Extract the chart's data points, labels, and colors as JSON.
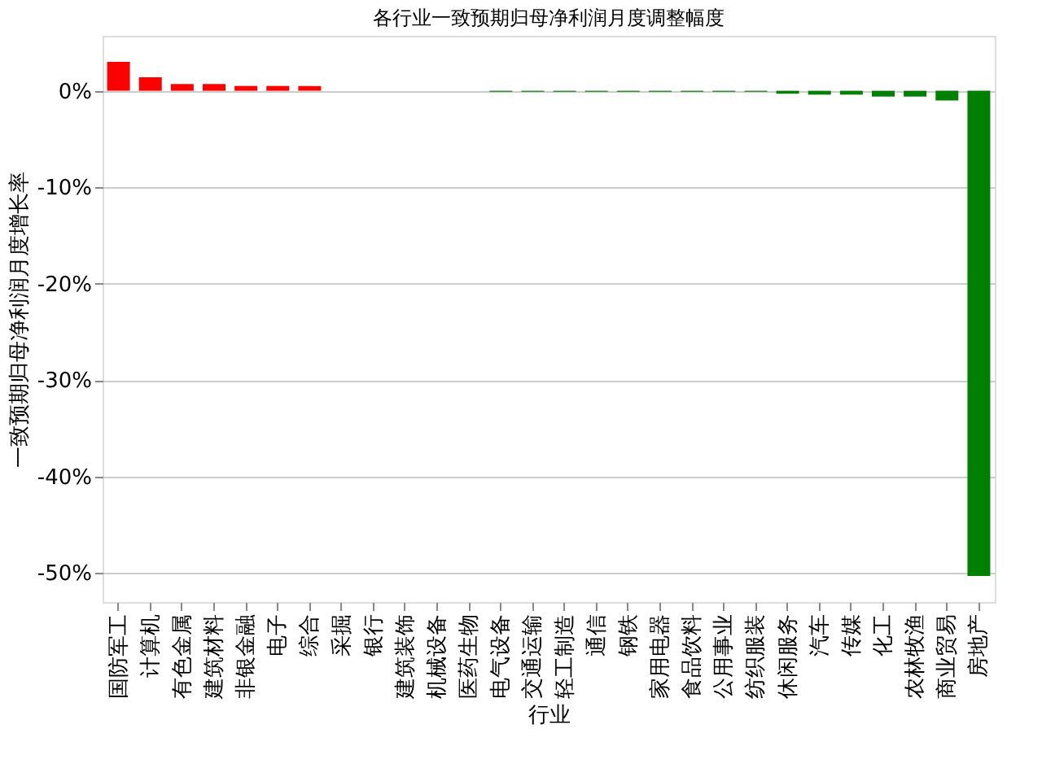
{
  "chart_data": {
    "type": "bar",
    "title": "各行业一致预期归母净利润月度调整幅度",
    "xlabel": "行业",
    "ylabel": "一致预期归母净利润月度增长率",
    "categories": [
      "国防军工",
      "计算机",
      "有色金属",
      "建筑材料",
      "非银金融",
      "电子",
      "综合",
      "采掘",
      "银行",
      "建筑装饰",
      "机械设备",
      "医药生物",
      "电气设备",
      "交通运输",
      "轻工制造",
      "通信",
      "钢铁",
      "家用电器",
      "食品饮料",
      "公用事业",
      "纺织服装",
      "休闲服务",
      "汽车",
      "传媒",
      "化工",
      "农林牧渔",
      "商业贸易",
      "房地产"
    ],
    "values": [
      3.0,
      1.4,
      0.7,
      0.7,
      0.5,
      0.5,
      0.5,
      0,
      0,
      0,
      0,
      0,
      -0.1,
      -0.1,
      -0.1,
      -0.1,
      -0.1,
      -0.1,
      -0.1,
      -0.1,
      -0.1,
      -0.3,
      -0.4,
      -0.4,
      -0.6,
      -0.6,
      -1.0,
      -50.3
    ],
    "colors": [
      "#ff0000",
      "#ff0000",
      "#ff0000",
      "#ff0000",
      "#ff0000",
      "#ff0000",
      "#ff0000",
      "#008000",
      "#008000",
      "#008000",
      "#008000",
      "#008000",
      "#008000",
      "#008000",
      "#008000",
      "#008000",
      "#008000",
      "#008000",
      "#008000",
      "#008000",
      "#008000",
      "#008000",
      "#008000",
      "#008000",
      "#008000",
      "#008000",
      "#008000",
      "#008000"
    ],
    "ylim": [
      -53,
      5.7
    ],
    "yticks": [
      {
        "value": 0,
        "label": "0%"
      },
      {
        "value": -10,
        "label": "-10%"
      },
      {
        "value": -20,
        "label": "-20%"
      },
      {
        "value": -30,
        "label": "-30%"
      },
      {
        "value": -40,
        "label": "-40%"
      },
      {
        "value": -50,
        "label": "-50%"
      }
    ],
    "grid": "y"
  }
}
